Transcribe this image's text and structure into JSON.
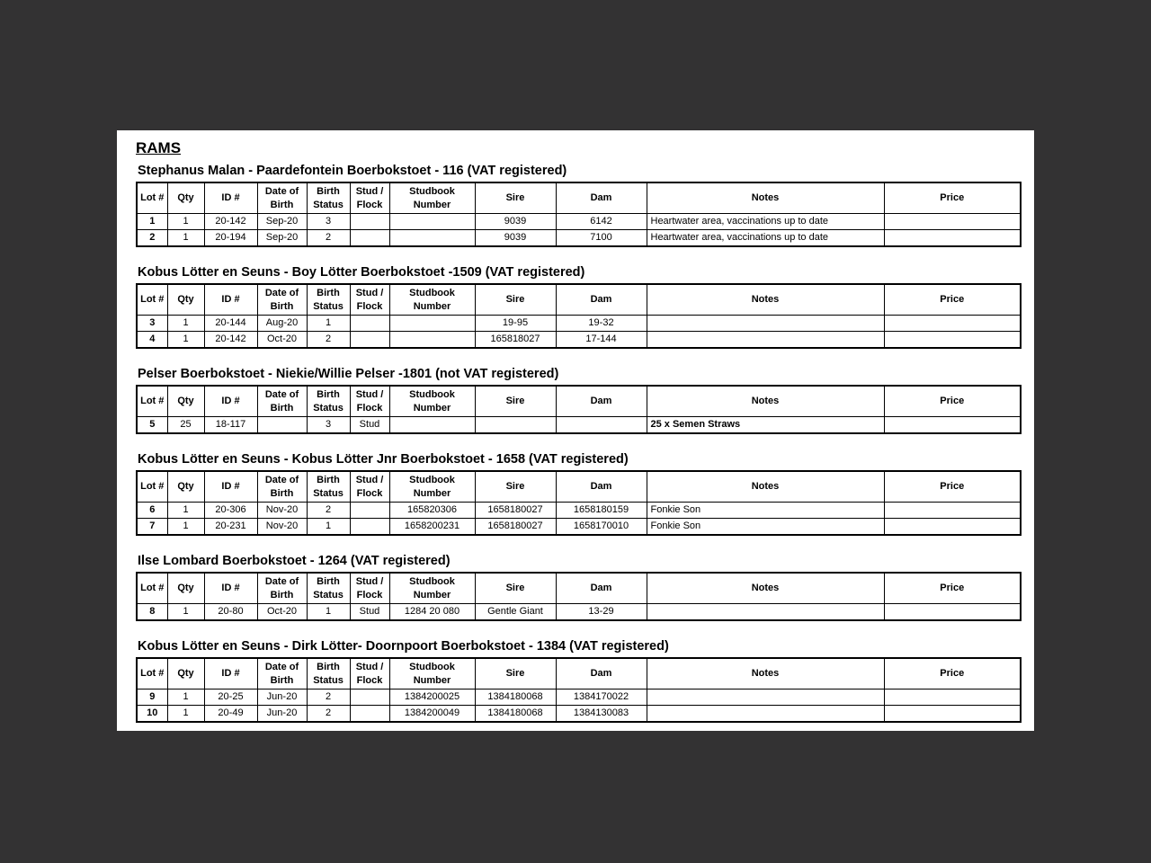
{
  "page": {
    "title": "RAMS"
  },
  "colors": {
    "background": "#333233",
    "page": "#ffffff",
    "text": "#000000",
    "border": "#000000"
  },
  "columns": [
    {
      "key": "lot",
      "label": [
        "Lot #"
      ]
    },
    {
      "key": "qty",
      "label": [
        "Qty"
      ]
    },
    {
      "key": "id",
      "label": [
        "ID #"
      ]
    },
    {
      "key": "dob",
      "label": [
        "Date of",
        "Birth"
      ]
    },
    {
      "key": "birth_status",
      "label": [
        "Birth",
        "Status"
      ]
    },
    {
      "key": "stud_flock",
      "label": [
        "Stud /",
        "Flock"
      ]
    },
    {
      "key": "studbook",
      "label": [
        "Studbook",
        "Number"
      ]
    },
    {
      "key": "sire",
      "label": [
        "Sire"
      ]
    },
    {
      "key": "dam",
      "label": [
        "Dam"
      ]
    },
    {
      "key": "notes",
      "label": [
        "Notes"
      ]
    },
    {
      "key": "price",
      "label": [
        "Price"
      ]
    }
  ],
  "sections": [
    {
      "title": "Stephanus Malan - Paardefontein Boerbokstoet - 116 (VAT registered)",
      "rows": [
        {
          "notes_bold": false,
          "cells": {
            "lot": "1",
            "qty": "1",
            "id": "20-142",
            "dob": "Sep-20",
            "birth_status": "3",
            "stud_flock": "",
            "studbook": "",
            "sire": "9039",
            "dam": "6142",
            "notes": "Heartwater area, vaccinations up to date",
            "price": ""
          }
        },
        {
          "notes_bold": false,
          "cells": {
            "lot": "2",
            "qty": "1",
            "id": "20-194",
            "dob": "Sep-20",
            "birth_status": "2",
            "stud_flock": "",
            "studbook": "",
            "sire": "9039",
            "dam": "7100",
            "notes": "Heartwater area, vaccinations up to date",
            "price": ""
          }
        }
      ]
    },
    {
      "title": "Kobus Lötter en Seuns - Boy Lötter Boerbokstoet -1509 (VAT registered)",
      "rows": [
        {
          "notes_bold": false,
          "cells": {
            "lot": "3",
            "qty": "1",
            "id": "20-144",
            "dob": "Aug-20",
            "birth_status": "1",
            "stud_flock": "",
            "studbook": "",
            "sire": "19-95",
            "dam": "19-32",
            "notes": "",
            "price": ""
          }
        },
        {
          "notes_bold": false,
          "cells": {
            "lot": "4",
            "qty": "1",
            "id": "20-142",
            "dob": "Oct-20",
            "birth_status": "2",
            "stud_flock": "",
            "studbook": "",
            "sire": "165818027",
            "dam": "17-144",
            "notes": "",
            "price": ""
          }
        }
      ]
    },
    {
      "title": "Pelser Boerbokstoet - Niekie/Willie Pelser -1801 (not VAT registered)",
      "rows": [
        {
          "notes_bold": true,
          "cells": {
            "lot": "5",
            "qty": "25",
            "id": "18-117",
            "dob": "",
            "birth_status": "3",
            "stud_flock": "Stud",
            "studbook": "",
            "sire": "",
            "dam": "",
            "notes": "25 x Semen Straws",
            "price": ""
          }
        }
      ]
    },
    {
      "title": "Kobus Lötter en Seuns - Kobus Lötter Jnr Boerbokstoet - 1658 (VAT registered)",
      "rows": [
        {
          "notes_bold": false,
          "cells": {
            "lot": "6",
            "qty": "1",
            "id": "20-306",
            "dob": "Nov-20",
            "birth_status": "2",
            "stud_flock": "",
            "studbook": "165820306",
            "sire": "1658180027",
            "dam": "1658180159",
            "notes": "Fonkie Son",
            "price": ""
          }
        },
        {
          "notes_bold": false,
          "cells": {
            "lot": "7",
            "qty": "1",
            "id": "20-231",
            "dob": "Nov-20",
            "birth_status": "1",
            "stud_flock": "",
            "studbook": "1658200231",
            "sire": "1658180027",
            "dam": "1658170010",
            "notes": "Fonkie Son",
            "price": ""
          }
        }
      ]
    },
    {
      "title": "Ilse Lombard Boerbokstoet - 1264 (VAT registered)",
      "rows": [
        {
          "notes_bold": false,
          "cells": {
            "lot": "8",
            "qty": "1",
            "id": "20-80",
            "dob": "Oct-20",
            "birth_status": "1",
            "stud_flock": "Stud",
            "studbook": "1284 20 080",
            "sire": "Gentle Giant",
            "dam": "13-29",
            "notes": "",
            "price": ""
          }
        }
      ]
    },
    {
      "title": "Kobus Lötter en Seuns - Dirk Lötter- Doornpoort Boerbokstoet - 1384 (VAT registered)",
      "rows": [
        {
          "notes_bold": false,
          "cells": {
            "lot": "9",
            "qty": "1",
            "id": "20-25",
            "dob": "Jun-20",
            "birth_status": "2",
            "stud_flock": "",
            "studbook": "1384200025",
            "sire": "1384180068",
            "dam": "1384170022",
            "notes": "",
            "price": ""
          }
        },
        {
          "notes_bold": false,
          "cells": {
            "lot": "10",
            "qty": "1",
            "id": "20-49",
            "dob": "Jun-20",
            "birth_status": "2",
            "stud_flock": "",
            "studbook": "1384200049",
            "sire": "1384180068",
            "dam": "1384130083",
            "notes": "",
            "price": ""
          }
        }
      ]
    }
  ]
}
